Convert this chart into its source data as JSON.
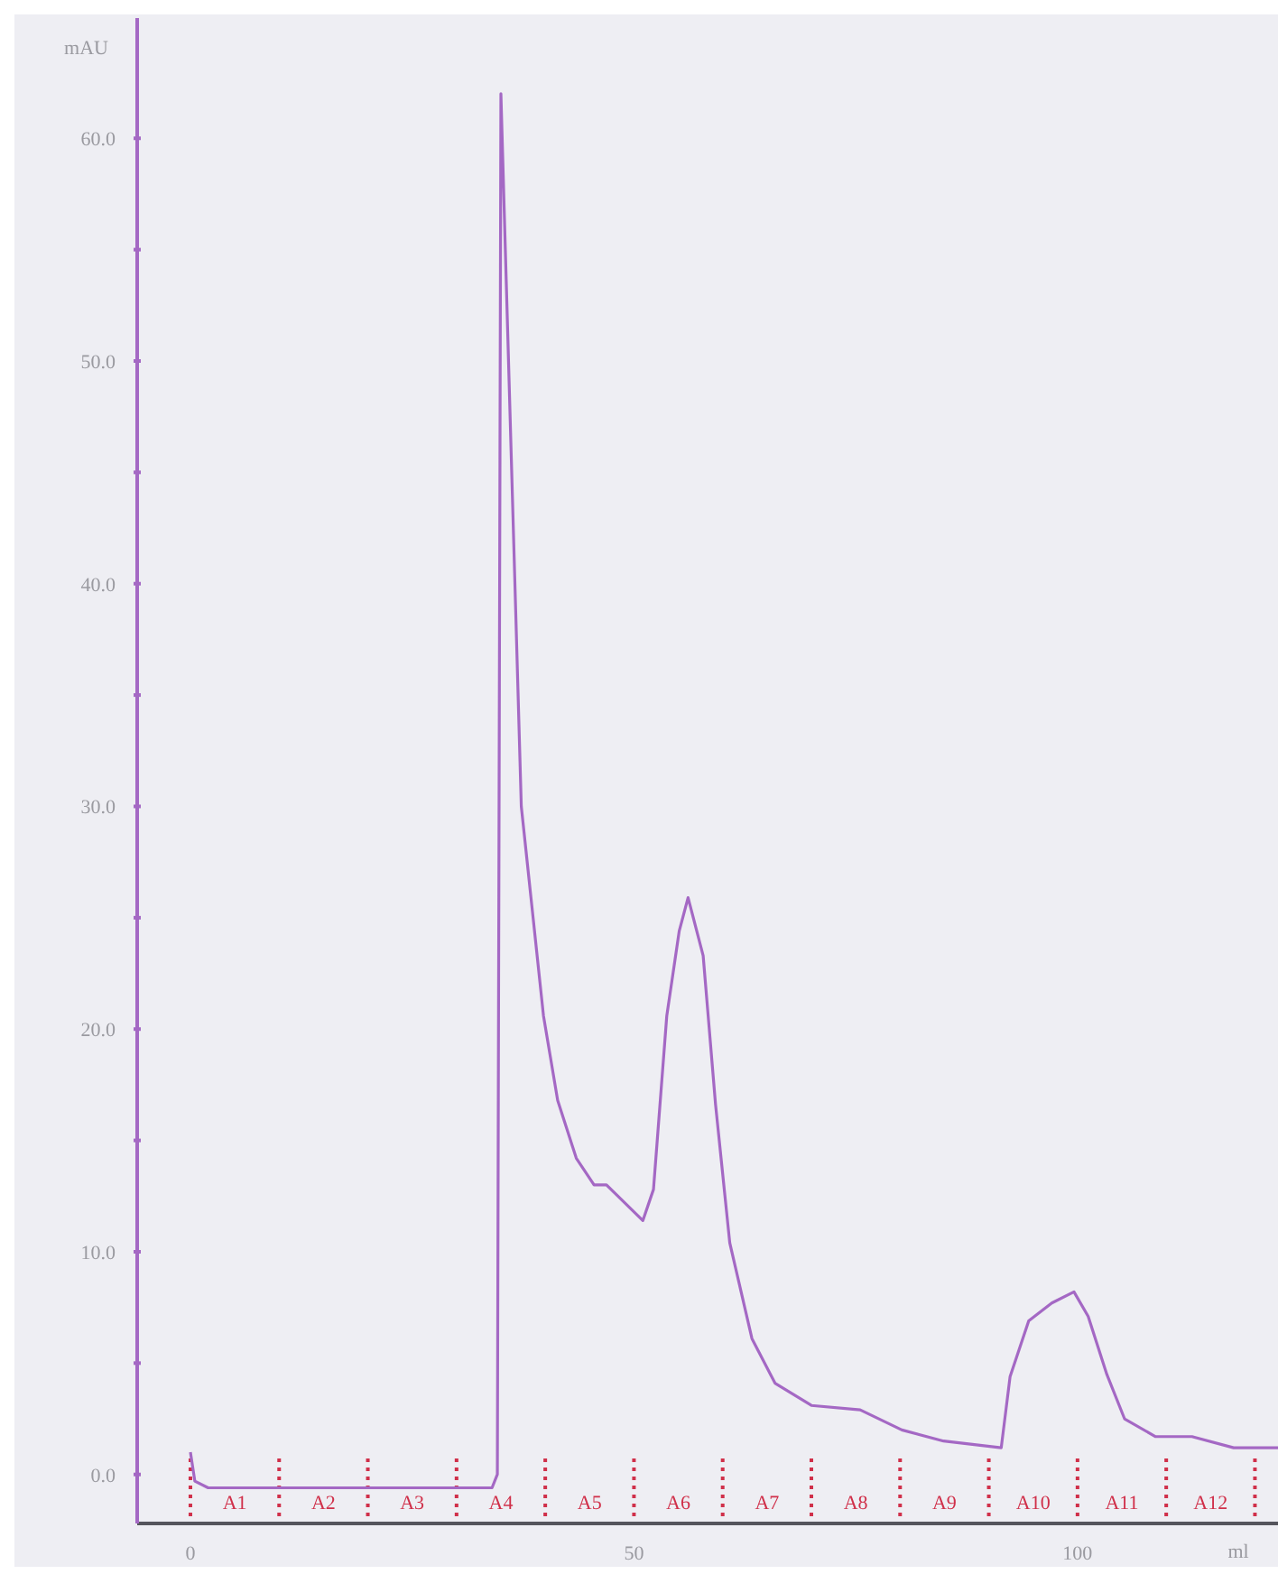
{
  "chart_data": {
    "type": "line",
    "xlabel": "ml",
    "ylabel": "mAU",
    "xlim": [
      -6,
      122.6
    ],
    "ylim": [
      -2.2,
      65.4
    ],
    "xticks": [
      0,
      50,
      100
    ],
    "yticks": [
      {
        "value": 0,
        "label": "0.0"
      },
      {
        "value": 5,
        "label": null
      },
      {
        "value": 10,
        "label": "10.0"
      },
      {
        "value": 15,
        "label": null
      },
      {
        "value": 20,
        "label": "20.0"
      },
      {
        "value": 25,
        "label": null
      },
      {
        "value": 30,
        "label": "30.0"
      },
      {
        "value": 35,
        "label": null
      },
      {
        "value": 40,
        "label": "40.0"
      },
      {
        "value": 45,
        "label": null
      },
      {
        "value": 50,
        "label": "50.0"
      },
      {
        "value": 55,
        "label": null
      },
      {
        "value": 60,
        "label": "60.0"
      }
    ],
    "series": [
      {
        "color": "#a468c4",
        "x": [
          0,
          0.5,
          2,
          10,
          20,
          30,
          34,
          34.6,
          35,
          35.5,
          37.3,
          39.8,
          41.4,
          43.5,
          45.5,
          46.9,
          51,
          52.2,
          53.7,
          55.1,
          56.1,
          57.8,
          59.2,
          60.8,
          63.3,
          65.9,
          70,
          75.5,
          80.2,
          84.9,
          91.4,
          92.4,
          94.5,
          97.1,
          99.6,
          101.2,
          103.3,
          105.3,
          108.8,
          112.9,
          117.6,
          122.6
        ],
        "values": [
          1.0,
          -0.3,
          -0.6,
          -0.6,
          -0.6,
          -0.6,
          -0.6,
          0,
          62.0,
          55,
          30,
          20.6,
          16.8,
          14.2,
          13.0,
          13.0,
          11.4,
          12.8,
          20.6,
          24.4,
          25.9,
          23.3,
          16.6,
          10.4,
          6.1,
          4.1,
          3.1,
          2.9,
          2.0,
          1.5,
          1.2,
          4.4,
          6.9,
          7.7,
          8.2,
          7.1,
          4.5,
          2.5,
          1.7,
          1.7,
          1.2,
          1.2
        ]
      }
    ],
    "marker": "none",
    "line_style": "solid",
    "grid": false,
    "legend": false,
    "ref_lines": [
      {
        "axis": "x",
        "value": 0,
        "label": "A1",
        "color": "#d0304a",
        "line_style": "dotted"
      },
      {
        "axis": "x",
        "value": 10,
        "label": "A2",
        "color": "#d0304a",
        "line_style": "dotted"
      },
      {
        "axis": "x",
        "value": 20,
        "label": "A3",
        "color": "#d0304a",
        "line_style": "dotted"
      },
      {
        "axis": "x",
        "value": 30,
        "label": "A4",
        "color": "#d0304a",
        "line_style": "dotted"
      },
      {
        "axis": "x",
        "value": 40,
        "label": "A5",
        "color": "#d0304a",
        "line_style": "dotted"
      },
      {
        "axis": "x",
        "value": 50,
        "label": "A6",
        "color": "#d0304a",
        "line_style": "dotted"
      },
      {
        "axis": "x",
        "value": 60,
        "label": "A7",
        "color": "#d0304a",
        "line_style": "dotted"
      },
      {
        "axis": "x",
        "value": 70,
        "label": "A8",
        "color": "#d0304a",
        "line_style": "dotted"
      },
      {
        "axis": "x",
        "value": 80,
        "label": "A9",
        "color": "#d0304a",
        "line_style": "dotted"
      },
      {
        "axis": "x",
        "value": 90,
        "label": "A10",
        "color": "#d0304a",
        "line_style": "dotted"
      },
      {
        "axis": "x",
        "value": 100,
        "label": "A11",
        "color": "#d0304a",
        "line_style": "dotted"
      },
      {
        "axis": "x",
        "value": 110,
        "label": "A12",
        "color": "#d0304a",
        "line_style": "dotted"
      },
      {
        "axis": "x",
        "value": 120,
        "label": null,
        "color": "#d0304a",
        "line_style": "dotted"
      }
    ]
  }
}
